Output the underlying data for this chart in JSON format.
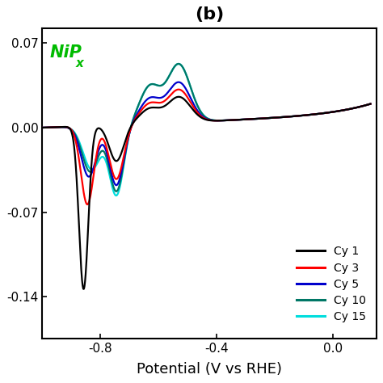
{
  "title": "(b)",
  "annotation_main": "NiP",
  "annotation_sub": "x",
  "annotation_color": "#00bb00",
  "xlabel": "Potential (V vs RHE)",
  "ylabel": "",
  "xlim": [
    -1.0,
    0.15
  ],
  "ylim": [
    -0.175,
    0.082
  ],
  "xticks": [
    -0.8,
    -0.4,
    0.0
  ],
  "yticks": [
    -0.14,
    -0.07,
    0.0,
    0.07
  ],
  "background_color": "#ffffff",
  "line_colors": {
    "Cy 1": "#000000",
    "Cy 3": "#ff0000",
    "Cy 5": "#0000cc",
    "Cy 10": "#007766",
    "Cy 15": "#00dddd"
  },
  "line_width": 1.6,
  "legend_entries": [
    "Cy 1",
    "Cy 3",
    "Cy 5",
    "Cy 10",
    "Cy 15"
  ]
}
